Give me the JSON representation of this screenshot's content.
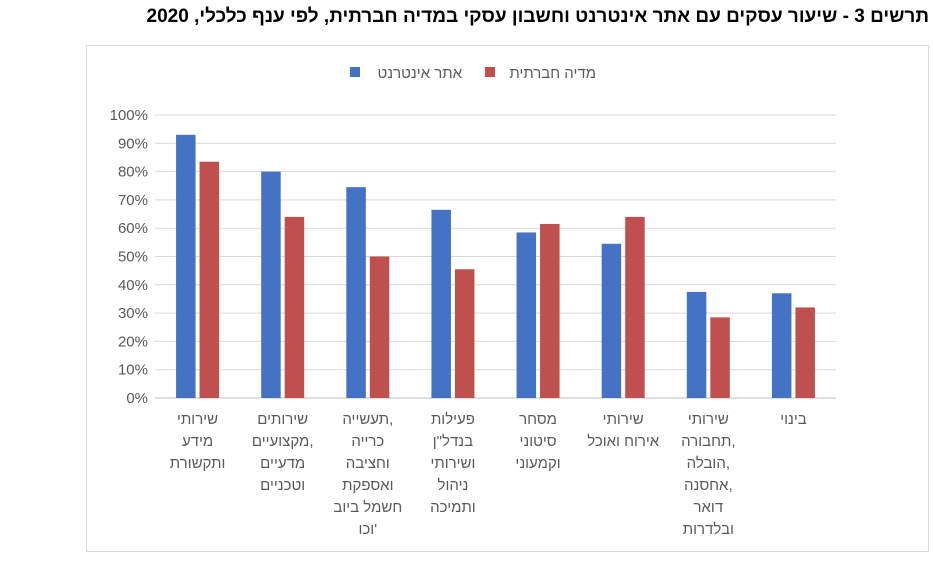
{
  "chart_data": {
    "type": "bar",
    "title": "תרשים 3 - שיעור עסקים עם אתר אינטרנט וחשבון עסקי במדיה חברתית, לפי ענף כלכלי, 2020",
    "ylim": [
      0,
      100
    ],
    "yticks": [
      "0%",
      "10%",
      "20%",
      "30%",
      "40%",
      "50%",
      "60%",
      "70%",
      "80%",
      "90%",
      "100%"
    ],
    "grid": true,
    "legend_position": "top",
    "categories": [
      [
        "שירותי",
        "מידע",
        "ותקשורת"
      ],
      [
        "שירותים",
        "מקצועיים,",
        "מדעיים",
        "וטכניים"
      ],
      [
        "תעשייה,",
        "כרייה",
        "וחציבה",
        "ואספקת",
        "חשמל ביוב",
        "וכו'"
      ],
      [
        "פעילות",
        "בנדל\"ן",
        "ושירותי",
        "ניהול",
        "ותמיכה"
      ],
      [
        "מסחר",
        "סיטוני",
        "וקמעוני"
      ],
      [
        "שירותי",
        "אירוח ואוכל"
      ],
      [
        "שירותי",
        "תחבורה,",
        "הובלה,",
        "אחסנה,",
        "דואר",
        "ובלדרות"
      ],
      [
        "בינוי"
      ]
    ],
    "series": [
      {
        "name": "אתר אינטרנט",
        "color": "#4472c4",
        "values": [
          93,
          80,
          74.5,
          66.5,
          58.5,
          54.5,
          37.5,
          37
        ]
      },
      {
        "name": "מדיה חברתית",
        "color": "#c0504d",
        "values": [
          83.5,
          64,
          50,
          45.5,
          61.5,
          64,
          28.5,
          32
        ]
      }
    ]
  }
}
